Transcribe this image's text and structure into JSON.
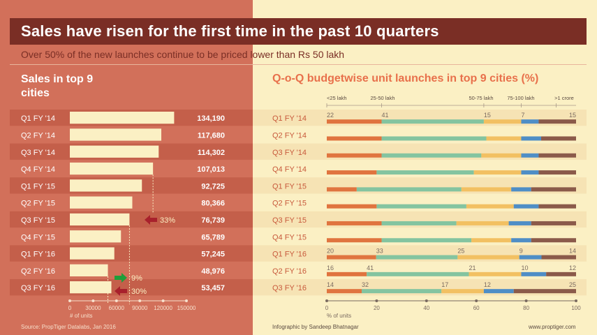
{
  "title": "Sales have risen for the first time in the past 10 quarters",
  "subtitle": "Over 50% of the new launches continue to be priced lower than Rs 50 lakh",
  "colors": {
    "left_bg": "#d2705a",
    "right_bg": "#fbf0c4",
    "title_bar": "#7a2e25",
    "bar": "#fbf0c4",
    "segments": [
      "#e0743f",
      "#84c4a0",
      "#f2c062",
      "#4f8ec6",
      "#8b5a4a"
    ],
    "arrow_up": "#1f9e3a",
    "arrow_down": "#a8212c"
  },
  "chart_data": [
    {
      "type": "bar",
      "title": "Sales in top 9 cities",
      "xlabel": "# of units",
      "orientation": "horizontal",
      "categories": [
        "Q1 FY '14",
        "Q2 FY '14",
        "Q3 FY '14",
        "Q4 FY '14",
        "Q1 FY '15",
        "Q2 FY '15",
        "Q3 FY '15",
        "Q4 FY '15",
        "Q1 FY '16",
        "Q2 FY '16",
        "Q3 FY '16"
      ],
      "values": [
        134190,
        117680,
        114302,
        107013,
        92725,
        80366,
        76739,
        65789,
        57245,
        48976,
        53457
      ],
      "value_labels": [
        "134,190",
        "117,680",
        "114,302",
        "107,013",
        "92,725",
        "80,366",
        "76,739",
        "65,789",
        "57,245",
        "48,976",
        "53,457"
      ],
      "xlim": [
        0,
        150000
      ],
      "xticks": [
        "0",
        "30000",
        "60000",
        "90000",
        "120000",
        "150000"
      ],
      "annotations": [
        {
          "text": "33%",
          "direction": "down",
          "category": "Q3 FY '15"
        },
        {
          "text": "9%",
          "direction": "up",
          "category": "Q3 FY '16"
        },
        {
          "text": "30%",
          "direction": "down",
          "category": "Q3 FY '16"
        }
      ]
    },
    {
      "type": "bar",
      "stacked": true,
      "orientation": "horizontal",
      "title": "Q-o-Q budgetwise unit launches in top 9 cities (%)",
      "xlabel": "% of units",
      "xlim": [
        0,
        100
      ],
      "xticks": [
        "0",
        "20",
        "40",
        "60",
        "80",
        "100"
      ],
      "segment_names": [
        "<25 lakh",
        "25-50 lakh",
        "50-75 lakh",
        "75-100 lakh",
        ">1 crore"
      ],
      "categories": [
        "Q1 FY '14",
        "Q2 FY '14",
        "Q3 FY '14",
        "Q4 FY '14",
        "Q1 FY '15",
        "Q2 FY '15",
        "Q3 FY '15",
        "Q4 FY '15",
        "Q1 FY '16",
        "Q2 FY '16",
        "Q3 FY '16"
      ],
      "rows": [
        [
          22,
          41,
          15,
          7,
          15
        ],
        [
          22,
          42,
          14,
          8,
          14
        ],
        [
          22,
          40,
          16,
          7,
          15
        ],
        [
          20,
          39,
          19,
          7,
          15
        ],
        [
          12,
          42,
          20,
          8,
          18
        ],
        [
          20,
          36,
          19,
          10,
          15
        ],
        [
          22,
          30,
          21,
          9,
          18
        ],
        [
          22,
          36,
          16,
          8,
          18
        ],
        [
          20,
          33,
          25,
          9,
          14
        ],
        [
          16,
          41,
          21,
          10,
          12
        ],
        [
          14,
          32,
          17,
          12,
          25
        ]
      ],
      "labeled_rows": {
        "Q1 FY '14": [
          "22",
          "41",
          "15",
          "7",
          "15"
        ],
        "Q1 FY '16": [
          "20",
          "33",
          "25",
          "9",
          "14"
        ],
        "Q2 FY '16": [
          "16",
          "41",
          "21",
          "10",
          "12"
        ],
        "Q3 FY '16": [
          "14",
          "32",
          "17",
          "12",
          "25"
        ]
      }
    }
  ],
  "footer": {
    "source": "Source: PropTiger Datalabs, Jan 2016",
    "credit": "Infographic by Sandeep Bhatnagar",
    "site": "www.proptiger.com"
  }
}
